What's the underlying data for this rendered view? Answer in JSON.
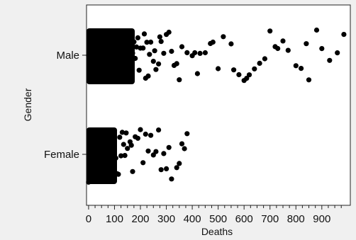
{
  "chart_data": {
    "type": "scatter",
    "title": "",
    "xlabel": "Deaths",
    "ylabel": "Gender",
    "categories": [
      "Male",
      "Female"
    ],
    "xlim": [
      -8,
      1010
    ],
    "x_ticks": [
      0,
      100,
      200,
      300,
      400,
      500,
      600,
      700,
      800,
      900
    ],
    "x_tick_labels": [
      "0",
      "100",
      "200",
      "300",
      "400",
      "500",
      "600",
      "700",
      "800",
      "900"
    ],
    "jitter": true,
    "grid": false,
    "legend": "none",
    "marker_color": "#000000",
    "series": [
      {
        "category": "Male",
        "x": [
          0,
          5,
          10,
          15,
          20,
          25,
          30,
          35,
          40,
          45,
          50,
          55,
          60,
          65,
          70,
          75,
          80,
          85,
          90,
          95,
          100,
          105,
          110,
          115,
          120,
          125,
          130,
          135,
          140,
          145,
          150,
          155,
          160,
          165,
          170,
          175,
          180,
          185,
          190,
          195,
          200,
          210,
          215,
          220,
          225,
          230,
          235,
          240,
          250,
          255,
          260,
          270,
          275,
          280,
          290,
          300,
          310,
          320,
          330,
          340,
          350,
          360,
          380,
          400,
          410,
          420,
          430,
          450,
          470,
          480,
          500,
          520,
          550,
          560,
          580,
          600,
          610,
          620,
          640,
          660,
          680,
          700,
          720,
          730,
          750,
          770,
          800,
          820,
          840,
          850,
          880,
          900,
          930,
          960,
          985
        ]
      },
      {
        "category": "Female",
        "x": [
          0,
          5,
          10,
          15,
          20,
          25,
          30,
          35,
          40,
          45,
          50,
          55,
          60,
          65,
          70,
          75,
          80,
          85,
          90,
          95,
          100,
          105,
          110,
          115,
          120,
          125,
          130,
          135,
          140,
          145,
          150,
          160,
          165,
          170,
          180,
          190,
          200,
          210,
          220,
          230,
          240,
          250,
          260,
          270,
          280,
          290,
          300,
          310,
          320,
          340,
          350,
          360,
          370,
          380
        ]
      }
    ]
  },
  "axis": {
    "y_labels": [
      "Male",
      "Female"
    ],
    "x_title": "Deaths",
    "y_title": "Gender"
  }
}
